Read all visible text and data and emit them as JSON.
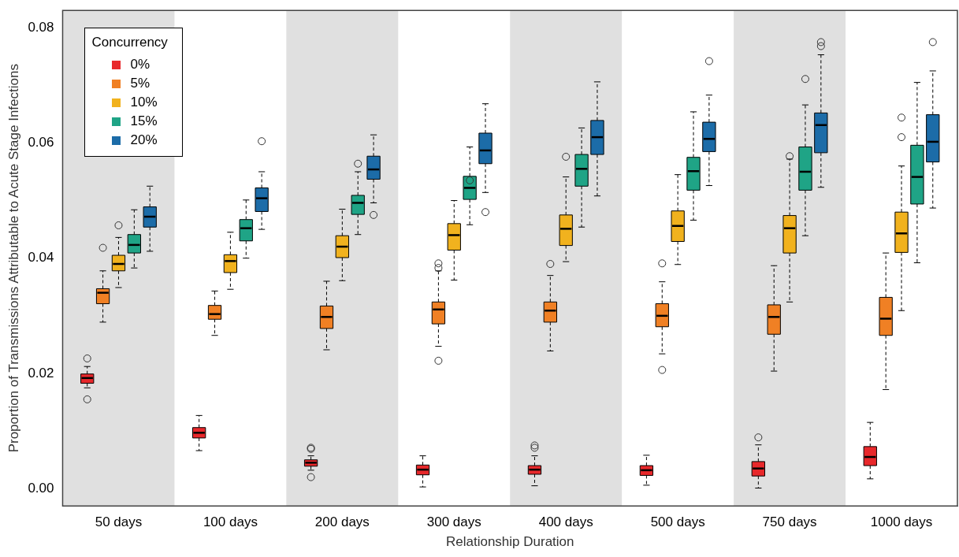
{
  "chart_data": {
    "type": "box",
    "xlabel": "Relationship Duration",
    "ylabel": "Proportion of Transmissions Attributable to Acute Stage Infections",
    "legend_title": "Concurrency",
    "legend": "top left",
    "grid": false,
    "categories": [
      "50 days",
      "100 days",
      "200 days",
      "300 days",
      "400 days",
      "500 days",
      "750 days",
      "1000 days"
    ],
    "ylim": [
      -0.003,
      0.083
    ],
    "yticks": [
      {
        "value": 0,
        "label": "0.00"
      },
      {
        "value": 0.02,
        "label": "0.02"
      },
      {
        "value": 0.04,
        "label": "0.04"
      },
      {
        "value": 0.06,
        "label": "0.06"
      },
      {
        "value": 0.08,
        "label": "0.08"
      }
    ],
    "bands": [
      {
        "axis": "x",
        "from": "50 days",
        "to": "50 days",
        "color": "#e0e0e0"
      },
      {
        "axis": "x",
        "from": "200 days",
        "to": "200 days",
        "color": "#e0e0e0"
      },
      {
        "axis": "x",
        "from": "400 days",
        "to": "400 days",
        "color": "#e0e0e0"
      },
      {
        "axis": "x",
        "from": "750 days",
        "to": "750 days",
        "color": "#e0e0e0"
      }
    ],
    "series": [
      {
        "name": "0%",
        "color": "#e8282b",
        "boxes": [
          {
            "low": 0.0175,
            "q1": 0.0183,
            "median": 0.0192,
            "q3": 0.0199,
            "high": 0.0212,
            "outliers": [
              0.0226,
              0.0155
            ]
          },
          {
            "low": 0.0066,
            "q1": 0.0088,
            "median": 0.0097,
            "q3": 0.0106,
            "high": 0.0127
          },
          {
            "low": 0.0032,
            "q1": 0.0039,
            "median": 0.0045,
            "q3": 0.005,
            "high": 0.0057,
            "outliers": [
              0.0069,
              0.0071,
              0.002
            ]
          },
          {
            "low": 0.0003,
            "q1": 0.0024,
            "median": 0.0033,
            "q3": 0.0041,
            "high": 0.0057
          },
          {
            "low": 0.0005,
            "q1": 0.0025,
            "median": 0.0033,
            "q3": 0.004,
            "high": 0.0057,
            "outliers": [
              0.0075,
              0.0071
            ]
          },
          {
            "low": 0.0006,
            "q1": 0.0023,
            "median": 0.0032,
            "q3": 0.004,
            "high": 0.0058
          },
          {
            "low": 0.0001,
            "q1": 0.0022,
            "median": 0.0035,
            "q3": 0.0047,
            "high": 0.0076,
            "outliers": [
              0.0089
            ]
          },
          {
            "low": 0.0017,
            "q1": 0.004,
            "median": 0.0055,
            "q3": 0.0073,
            "high": 0.0115
          }
        ]
      },
      {
        "name": "5%",
        "color": "#f08024",
        "boxes": [
          {
            "low": 0.0289,
            "q1": 0.0321,
            "median": 0.034,
            "q3": 0.0347,
            "high": 0.0378,
            "outliers": [
              0.0418
            ]
          },
          {
            "low": 0.0266,
            "q1": 0.0294,
            "median": 0.0303,
            "q3": 0.0318,
            "high": 0.0343
          },
          {
            "low": 0.0241,
            "q1": 0.0278,
            "median": 0.0298,
            "q3": 0.0317,
            "high": 0.036
          },
          {
            "low": 0.0247,
            "q1": 0.0286,
            "median": 0.0311,
            "q3": 0.0324,
            "high": 0.0378,
            "outliers": [
              0.0391,
              0.0383,
              0.0222
            ]
          },
          {
            "low": 0.0239,
            "q1": 0.0289,
            "median": 0.0309,
            "q3": 0.0324,
            "high": 0.037,
            "outliers": [
              0.039
            ]
          },
          {
            "low": 0.0234,
            "q1": 0.0281,
            "median": 0.03,
            "q3": 0.0321,
            "high": 0.0359,
            "outliers": [
              0.0391,
              0.0206
            ]
          },
          {
            "low": 0.0204,
            "q1": 0.0268,
            "median": 0.0298,
            "q3": 0.0319,
            "high": 0.0387
          },
          {
            "low": 0.0172,
            "q1": 0.0266,
            "median": 0.0295,
            "q3": 0.0332,
            "high": 0.0409
          }
        ]
      },
      {
        "name": "10%",
        "color": "#f1b21e",
        "boxes": [
          {
            "low": 0.0349,
            "q1": 0.0378,
            "median": 0.039,
            "q3": 0.0405,
            "high": 0.0436,
            "outliers": [
              0.0457
            ]
          },
          {
            "low": 0.0346,
            "q1": 0.0375,
            "median": 0.0395,
            "q3": 0.0406,
            "high": 0.0445
          },
          {
            "low": 0.0361,
            "q1": 0.0401,
            "median": 0.042,
            "q3": 0.0439,
            "high": 0.0485
          },
          {
            "low": 0.0362,
            "q1": 0.0414,
            "median": 0.044,
            "q3": 0.046,
            "high": 0.05
          },
          {
            "low": 0.0394,
            "q1": 0.0422,
            "median": 0.0451,
            "q3": 0.0475,
            "high": 0.0541,
            "outliers": [
              0.0576
            ]
          },
          {
            "low": 0.0389,
            "q1": 0.0429,
            "median": 0.0456,
            "q3": 0.0482,
            "high": 0.0545
          },
          {
            "low": 0.0324,
            "q1": 0.0409,
            "median": 0.0452,
            "q3": 0.0474,
            "high": 0.0572,
            "outliers": [
              0.0577
            ]
          },
          {
            "low": 0.0309,
            "q1": 0.041,
            "median": 0.0443,
            "q3": 0.048,
            "high": 0.056,
            "outliers": [
              0.0644,
              0.061
            ]
          }
        ]
      },
      {
        "name": "15%",
        "color": "#1fa486",
        "boxes": [
          {
            "low": 0.0383,
            "q1": 0.0409,
            "median": 0.0423,
            "q3": 0.0441,
            "high": 0.0484
          },
          {
            "low": 0.04,
            "q1": 0.043,
            "median": 0.0452,
            "q3": 0.0467,
            "high": 0.0501
          },
          {
            "low": 0.0441,
            "q1": 0.0476,
            "median": 0.0496,
            "q3": 0.0509,
            "high": 0.055,
            "outliers": [
              0.0564
            ]
          },
          {
            "low": 0.0458,
            "q1": 0.0502,
            "median": 0.0522,
            "q3": 0.0542,
            "high": 0.0593,
            "outliers": [
              0.0535
            ]
          },
          {
            "low": 0.0454,
            "q1": 0.0525,
            "median": 0.0555,
            "q3": 0.058,
            "high": 0.0626
          },
          {
            "low": 0.0466,
            "q1": 0.0518,
            "median": 0.0551,
            "q3": 0.0575,
            "high": 0.0654
          },
          {
            "low": 0.0439,
            "q1": 0.0518,
            "median": 0.055,
            "q3": 0.0593,
            "high": 0.0666,
            "outliers": [
              0.0711
            ]
          },
          {
            "low": 0.0392,
            "q1": 0.0494,
            "median": 0.0541,
            "q3": 0.0596,
            "high": 0.0705
          }
        ]
      },
      {
        "name": "20%",
        "color": "#1c6ca8",
        "boxes": [
          {
            "low": 0.0412,
            "q1": 0.0454,
            "median": 0.0472,
            "q3": 0.0489,
            "high": 0.0525
          },
          {
            "low": 0.045,
            "q1": 0.0481,
            "median": 0.0504,
            "q3": 0.0522,
            "high": 0.055,
            "outliers": [
              0.0603
            ]
          },
          {
            "low": 0.0496,
            "q1": 0.0537,
            "median": 0.0554,
            "q3": 0.0577,
            "high": 0.0614,
            "outliers": [
              0.0475
            ]
          },
          {
            "low": 0.0514,
            "q1": 0.0564,
            "median": 0.0587,
            "q3": 0.0617,
            "high": 0.0668,
            "outliers": [
              0.048
            ]
          },
          {
            "low": 0.0508,
            "q1": 0.058,
            "median": 0.061,
            "q3": 0.0639,
            "high": 0.0706
          },
          {
            "low": 0.0526,
            "q1": 0.0585,
            "median": 0.0607,
            "q3": 0.0636,
            "high": 0.0683,
            "outliers": [
              0.0742
            ]
          },
          {
            "low": 0.0523,
            "q1": 0.0583,
            "median": 0.0631,
            "q3": 0.0652,
            "high": 0.0753,
            "outliers": [
              0.0775,
              0.0768
            ]
          },
          {
            "low": 0.0487,
            "q1": 0.0567,
            "median": 0.0602,
            "q3": 0.0649,
            "high": 0.0725,
            "outliers": [
              0.0775
            ]
          }
        ]
      }
    ]
  }
}
